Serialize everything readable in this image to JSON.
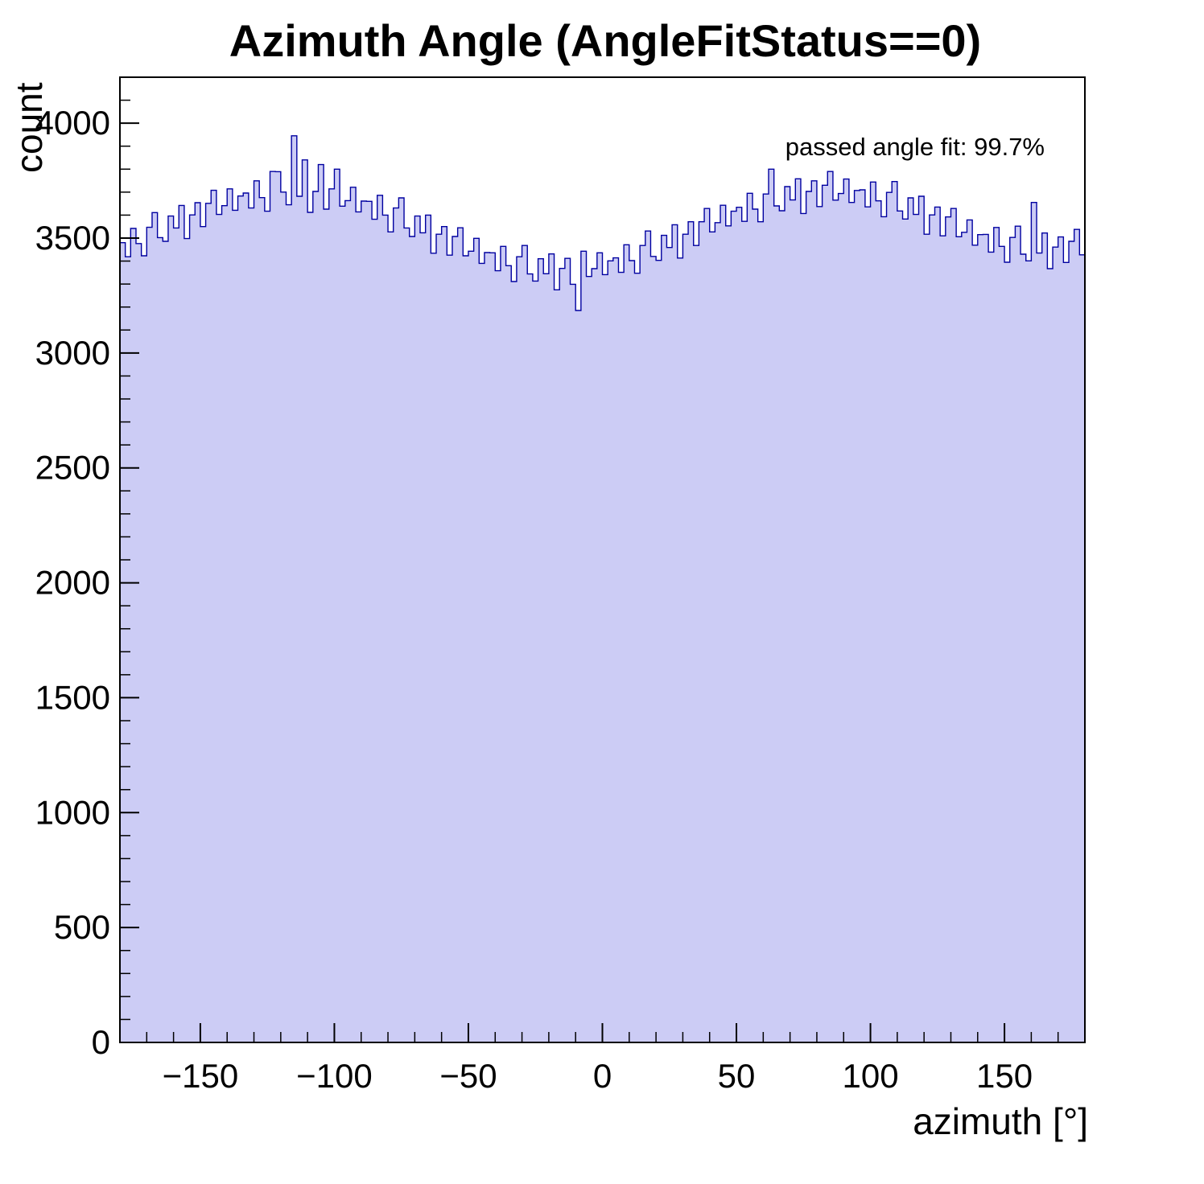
{
  "title": "Azimuth Angle (AngleFitStatus==0)",
  "annotation": "passed angle fit: 99.7%",
  "chart_data": {
    "type": "bar",
    "subtype": "step-histogram",
    "title": "Azimuth Angle (AngleFitStatus==0)",
    "xlabel": "azimuth [°]",
    "ylabel": "count",
    "xlim": [
      -180,
      180
    ],
    "ylim": [
      0,
      4200
    ],
    "xticks": [
      -150,
      -100,
      -50,
      0,
      50,
      100,
      150
    ],
    "yticks": [
      0,
      500,
      1000,
      1500,
      2000,
      2500,
      3000,
      3500,
      4000
    ],
    "x_minor_step": 10,
    "y_minor_step": 100,
    "bin_start": -180,
    "bin_width": 2,
    "values": [
      3480,
      3419,
      3542,
      3476,
      3423,
      3547,
      3611,
      3502,
      3486,
      3596,
      3544,
      3642,
      3498,
      3601,
      3654,
      3550,
      3651,
      3708,
      3603,
      3641,
      3714,
      3621,
      3683,
      3696,
      3631,
      3749,
      3676,
      3617,
      3790,
      3789,
      3700,
      3645,
      3945,
      3682,
      3840,
      3612,
      3703,
      3820,
      3626,
      3714,
      3800,
      3639,
      3663,
      3721,
      3614,
      3661,
      3660,
      3582,
      3686,
      3600,
      3527,
      3631,
      3675,
      3544,
      3507,
      3596,
      3523,
      3600,
      3434,
      3517,
      3550,
      3426,
      3507,
      3545,
      3423,
      3443,
      3499,
      3390,
      3437,
      3436,
      3358,
      3464,
      3380,
      3311,
      3419,
      3468,
      3344,
      3313,
      3410,
      3345,
      3431,
      3275,
      3368,
      3412,
      3299,
      3185,
      3443,
      3333,
      3367,
      3436,
      3341,
      3401,
      3414,
      3351,
      3471,
      3402,
      3347,
      3468,
      3531,
      3420,
      3403,
      3512,
      3459,
      3558,
      3413,
      3517,
      3571,
      3468,
      3571,
      3629,
      3527,
      3567,
      3643,
      3553,
      3617,
      3634,
      3573,
      3695,
      3626,
      3571,
      3692,
      3800,
      3640,
      3619,
      3724,
      3666,
      3758,
      3607,
      3703,
      3749,
      3637,
      3730,
      3790,
      3665,
      3694,
      3757,
      3655,
      3707,
      3710,
      3636,
      3744,
      3662,
      3593,
      3699,
      3746,
      3618,
      3583,
      3675,
      3603,
      3682,
      3517,
      3601,
      3635,
      3510,
      3592,
      3629,
      3506,
      3525,
      3579,
      3469,
      3515,
      3516,
      3439,
      3546,
      3464,
      3395,
      3503,
      3552,
      3430,
      3401,
      3655,
      3435,
      3522,
      3367,
      3461,
      3505,
      3394,
      3486,
      3538,
      3427
    ],
    "fill_color": "#ccccf5",
    "line_color": "#0000a0",
    "frame_color": "#000000",
    "grid": false,
    "legend": null
  }
}
